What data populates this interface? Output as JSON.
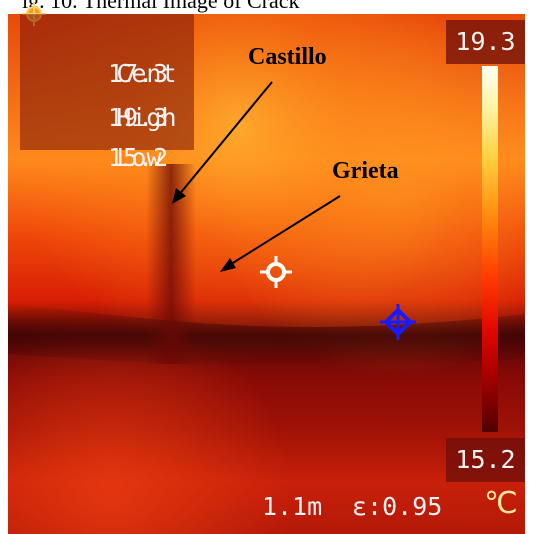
{
  "caption": {
    "text": "ig. 10. Thermal Image of Crack"
  },
  "readout": {
    "rows": [
      {
        "label": "Cent",
        "value": "17.3"
      },
      {
        "label": "High",
        "value": "19.3"
      },
      {
        "label": "Low",
        "value": "15.2"
      }
    ]
  },
  "scale": {
    "max": "19.3",
    "min": "15.2"
  },
  "status": {
    "distance": "1.1m",
    "emissivity": "ε:0.95",
    "unit": "℃"
  },
  "annotations": {
    "castillo": "Castillo",
    "grieta": "Grieta"
  },
  "colors": {
    "crosshair_center": "#ffffff",
    "crosshair_cold": "#1a1aff",
    "arrow": "#000000",
    "hot_spot": "#ff9a20"
  },
  "icons": {
    "center_marker": "crosshair-icon",
    "cold_marker": "crosshair-icon",
    "hot_marker": "hot-spot-icon"
  }
}
